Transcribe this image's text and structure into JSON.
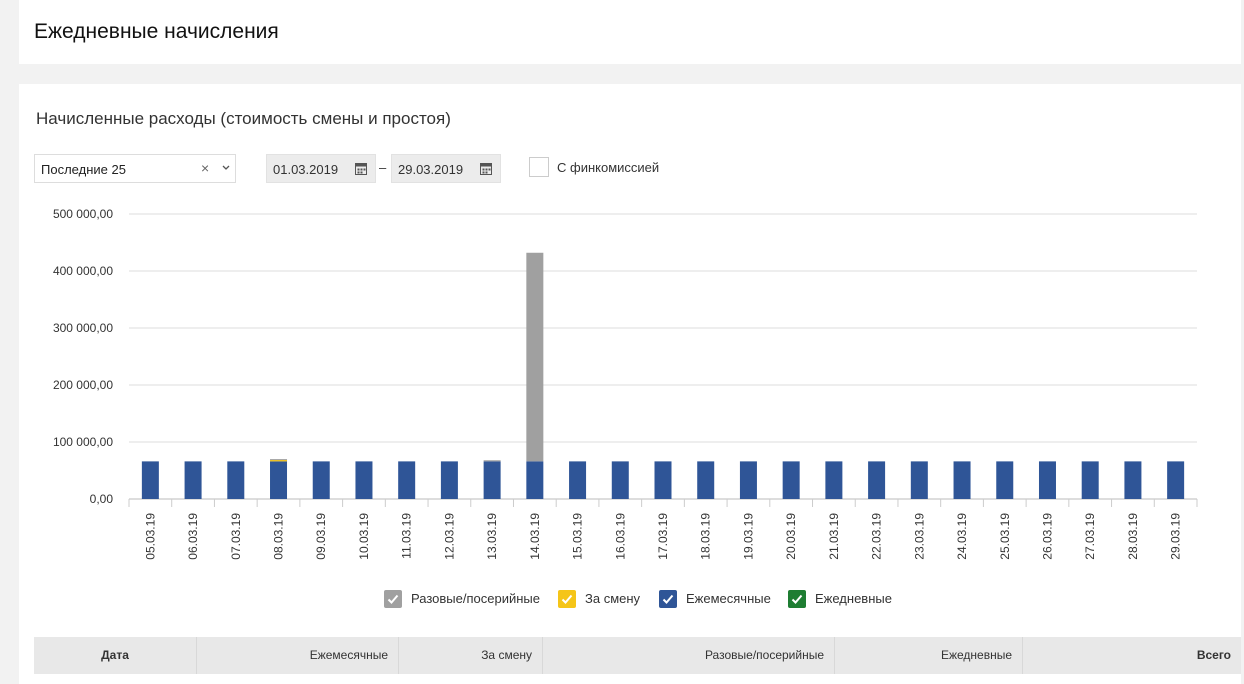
{
  "page": {
    "title": "Ежедневные начисления"
  },
  "section": {
    "title": "Начисленные расходы (стоимость смены и простоя)"
  },
  "filters": {
    "period_select": "Последние 25",
    "clear_icon": "×",
    "date_from": "01.03.2019",
    "date_to": "29.03.2019",
    "date_separator": "–",
    "checkbox_label": "С финкомиссией",
    "checkbox_checked": false
  },
  "legend": [
    {
      "label": "Разовые/посерийные",
      "color": "#a0a0a0"
    },
    {
      "label": "За смену",
      "color": "#f5c518"
    },
    {
      "label": "Ежемесячные",
      "color": "#2f5597"
    },
    {
      "label": "Ежедневные",
      "color": "#1e7d32"
    }
  ],
  "table": {
    "headers": [
      "Дата",
      "Ежемесячные",
      "За смену",
      "Разовые/посерийные",
      "Ежедневные",
      "Всего"
    ]
  },
  "chart_data": {
    "type": "bar",
    "stacked": true,
    "categories": [
      "05.03.19",
      "06.03.19",
      "07.03.19",
      "08.03.19",
      "09.03.19",
      "10.03.19",
      "11.03.19",
      "12.03.19",
      "13.03.19",
      "14.03.19",
      "15.03.19",
      "16.03.19",
      "17.03.19",
      "18.03.19",
      "19.03.19",
      "20.03.19",
      "21.03.19",
      "22.03.19",
      "23.03.19",
      "24.03.19",
      "25.03.19",
      "26.03.19",
      "27.03.19",
      "28.03.19",
      "29.03.19"
    ],
    "y_ticks": [
      "0,00",
      "100 000,00",
      "200 000,00",
      "300 000,00",
      "400 000,00",
      "500 000,00"
    ],
    "ylim": [
      0,
      500000
    ],
    "grid": true,
    "legend_position": "bottom",
    "series": [
      {
        "name": "Ежемесячные",
        "color": "#2f5597",
        "values": [
          66000,
          66000,
          66000,
          66000,
          66000,
          66000,
          66000,
          66000,
          66000,
          66000,
          66000,
          66000,
          66000,
          66000,
          66000,
          66000,
          66000,
          66000,
          66000,
          66000,
          66000,
          66000,
          66000,
          66000,
          66000
        ]
      },
      {
        "name": "За смену",
        "color": "#f5c518",
        "values": [
          0,
          0,
          0,
          2500,
          0,
          0,
          0,
          0,
          0,
          0,
          0,
          0,
          0,
          0,
          0,
          0,
          0,
          0,
          0,
          0,
          0,
          0,
          0,
          0,
          0
        ]
      },
      {
        "name": "Разовые/посерийные",
        "color": "#a0a0a0",
        "values": [
          0,
          0,
          0,
          1500,
          0,
          0,
          0,
          0,
          2000,
          366000,
          0,
          0,
          0,
          0,
          0,
          0,
          0,
          0,
          0,
          0,
          0,
          0,
          0,
          0,
          0
        ]
      },
      {
        "name": "Ежедневные",
        "color": "#1e7d32",
        "values": [
          0,
          0,
          0,
          0,
          0,
          0,
          0,
          0,
          0,
          0,
          0,
          0,
          0,
          0,
          0,
          0,
          0,
          0,
          0,
          0,
          0,
          0,
          0,
          0,
          0
        ]
      }
    ]
  }
}
